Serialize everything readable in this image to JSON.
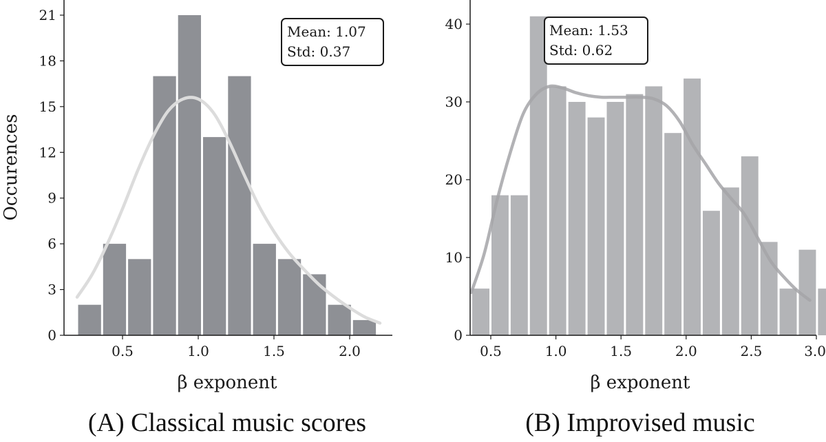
{
  "chart_data": [
    {
      "type": "bar",
      "caption": "(A) Classical music scores",
      "xlabel": "β exponent",
      "ylabel": "Occurences",
      "xlim": [
        0.1,
        2.28
      ],
      "ylim": [
        0,
        22.5
      ],
      "xticks": [
        0.5,
        1.0,
        1.5,
        2.0
      ],
      "xtick_labels": [
        "0.5",
        "1.0",
        "1.5",
        "2.0"
      ],
      "yticks": [
        0,
        3,
        6,
        9,
        12,
        15,
        18,
        21
      ],
      "ytick_labels": [
        "0",
        "3",
        "6",
        "9",
        "12",
        "15",
        "18",
        "21"
      ],
      "bin_start": 0.2,
      "bin_width": 0.165,
      "values": [
        2,
        6,
        5,
        17,
        21,
        13,
        17,
        6,
        5,
        4,
        2,
        1
      ],
      "bar_color": "#8e9095",
      "kde_color": "#dcdcdc",
      "kde": {
        "x": [
          0.2,
          0.3,
          0.4,
          0.5,
          0.6,
          0.7,
          0.8,
          0.9,
          1.0,
          1.1,
          1.2,
          1.3,
          1.4,
          1.5,
          1.6,
          1.7,
          1.8,
          1.9,
          2.0,
          2.1,
          2.2
        ],
        "y": [
          2.5,
          4.0,
          6.0,
          8.3,
          10.8,
          13.0,
          14.7,
          15.5,
          15.5,
          14.6,
          12.8,
          10.6,
          8.5,
          6.8,
          5.4,
          4.3,
          3.3,
          2.5,
          1.8,
          1.2,
          0.8
        ]
      },
      "stats": [
        "Mean: 1.07",
        "Std: 0.37"
      ],
      "stats_placement": "top-right"
    },
    {
      "type": "bar",
      "caption": "(B) Improvised music",
      "xlabel": "β exponent",
      "ylabel": "",
      "xlim": [
        0.35,
        3.0
      ],
      "ylim": [
        0,
        43
      ],
      "xticks": [
        0.5,
        1.0,
        1.5,
        2.0,
        2.5,
        3.0
      ],
      "xtick_labels": [
        "0.5",
        "1.0",
        "1.5",
        "2.0",
        "2.5",
        "3.0"
      ],
      "yticks": [
        0,
        10,
        20,
        30,
        40
      ],
      "ytick_labels": [
        "0",
        "10",
        "20",
        "30",
        "40"
      ],
      "bin_start": 0.35,
      "bin_width": 0.1475,
      "values": [
        6,
        18,
        18,
        41,
        32,
        30,
        28,
        30,
        31,
        32,
        26,
        33,
        16,
        19,
        23,
        12,
        6,
        11,
        6
      ],
      "bar_color": "#b3b4b7",
      "kde_color": "#a4a5a8",
      "kde": {
        "x": [
          0.35,
          0.45,
          0.55,
          0.65,
          0.75,
          0.85,
          0.95,
          1.05,
          1.15,
          1.25,
          1.35,
          1.45,
          1.55,
          1.65,
          1.75,
          1.85,
          1.95,
          2.05,
          2.15,
          2.25,
          2.35,
          2.45,
          2.55,
          2.65,
          2.75,
          2.85,
          2.95
        ],
        "y": [
          5.5,
          10.5,
          17.5,
          23.5,
          28.5,
          31.0,
          32.0,
          31.8,
          31.2,
          30.8,
          30.6,
          30.6,
          30.6,
          30.6,
          30.4,
          29.5,
          27.5,
          24.5,
          22.0,
          19.5,
          17.5,
          15.5,
          12.5,
          9.5,
          7.5,
          5.8,
          4.5
        ]
      },
      "stats": [
        "Mean: 1.53",
        "Std: 0.62"
      ],
      "stats_placement": "top-left"
    }
  ]
}
